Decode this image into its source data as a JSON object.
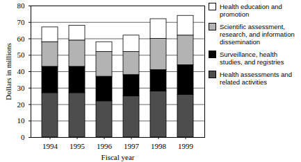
{
  "chart_data": {
    "type": "bar",
    "stacked": true,
    "grid": true,
    "legend": "right",
    "x_label": "Fiscal year",
    "y_label": "Dollars in millions",
    "categories": [
      "1994",
      "1995",
      "1996",
      "1997",
      "1998",
      "1999"
    ],
    "ylim": [
      0,
      80
    ],
    "yticks": [
      0,
      10,
      20,
      30,
      40,
      50,
      60,
      70,
      80
    ],
    "series": [
      {
        "name": "Health assessments and related activities",
        "color": "#4d4d4d",
        "values": [
          27,
          27,
          22,
          25,
          28,
          26
        ]
      },
      {
        "name": "Surveillance, health studies, and registries",
        "color": "#000000",
        "values": [
          16,
          16,
          15,
          13,
          13,
          18
        ]
      },
      {
        "name": "Scientific assessment, research, and information dissemination",
        "color": "#b3b3b3",
        "values": [
          15,
          16,
          15,
          14,
          19,
          18
        ]
      },
      {
        "name": "Health education and promotion",
        "color": "#ffffff",
        "values": [
          9,
          9,
          6,
          10,
          12,
          12
        ]
      }
    ]
  }
}
